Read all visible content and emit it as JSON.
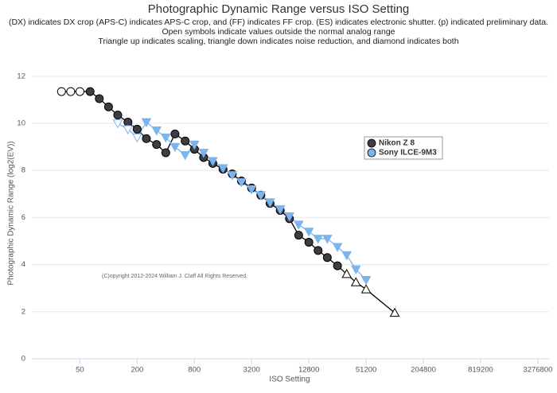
{
  "chart_data": {
    "type": "line",
    "title": "Photographic Dynamic Range versus ISO Setting",
    "subtitles": [
      "(DX) indicates DX crop (APS-C) indicates APS-C crop, and (FF) indicates FF crop. (ES) indicates electronic shutter. (p) indicated preliminary data.",
      "Open symbols indicate values outside the normal analog range",
      "Triangle up indicates scaling, triangle down indicates noise reduction, and diamond indicates both"
    ],
    "x_label": "ISO Setting",
    "y_label": "Photographic Dynamic Range (log2(EV))",
    "annotation": "(C)opyright 2012-2024 William J. Claff All Rights Reserved.",
    "x_scale": "log",
    "xlim": [
      15.6,
      4300000
    ],
    "xticks": [
      50,
      200,
      800,
      3200,
      12800,
      51200,
      204800,
      819200,
      3276800
    ],
    "ylim": [
      0,
      12.4
    ],
    "yticks": [
      0,
      2,
      4,
      6,
      8,
      10,
      12
    ],
    "grid": true,
    "series": [
      {
        "name": "Nikon Z 8",
        "color": "#3d3d44",
        "line_color": "#000000",
        "x": [
          32,
          40,
          50,
          64,
          80,
          100,
          125,
          160,
          200,
          250,
          320,
          400,
          500,
          640,
          800,
          1000,
          1250,
          1600,
          2000,
          2500,
          3200,
          4000,
          5000,
          6400,
          8000,
          10000,
          12800,
          16000,
          20000,
          25600,
          32000,
          40000,
          51200,
          102400
        ],
        "values": [
          11.35,
          11.35,
          11.35,
          11.35,
          11.05,
          10.7,
          10.35,
          10.05,
          9.75,
          9.35,
          9.1,
          8.75,
          9.55,
          9.25,
          8.9,
          8.55,
          8.3,
          8.05,
          7.85,
          7.55,
          7.25,
          6.95,
          6.6,
          6.3,
          5.95,
          5.25,
          4.95,
          4.6,
          4.3,
          3.95,
          3.6,
          3.25,
          2.95,
          1.95
        ],
        "markers": [
          "open-circle",
          "open-circle",
          "open-circle",
          "circle",
          "circle",
          "circle",
          "circle",
          "circle",
          "circle",
          "circle",
          "circle",
          "circle",
          "circle",
          "circle",
          "circle",
          "circle",
          "circle",
          "circle",
          "circle",
          "circle",
          "circle",
          "circle",
          "circle",
          "circle",
          "circle",
          "circle",
          "circle",
          "circle",
          "circle",
          "circle",
          "open-triangle-up",
          "open-triangle-up",
          "open-triangle-up",
          "open-triangle-up"
        ]
      },
      {
        "name": "Sony ILCE-9M3",
        "color": "#7cb5ec",
        "line_color": "#7cb5ec",
        "x": [
          125,
          160,
          200,
          250,
          320,
          400,
          500,
          640,
          800,
          1000,
          1250,
          1600,
          2000,
          2500,
          3200,
          4000,
          5000,
          6400,
          8000,
          10000,
          12800,
          16000,
          20000,
          25600,
          32000,
          40000,
          51200
        ],
        "values": [
          10.0,
          9.75,
          9.4,
          10.05,
          9.7,
          9.4,
          9.0,
          8.65,
          9.1,
          8.75,
          8.4,
          8.1,
          7.8,
          7.5,
          7.2,
          6.95,
          6.65,
          6.35,
          6.05,
          5.7,
          5.4,
          5.1,
          5.1,
          4.75,
          4.4,
          3.8,
          3.35
        ],
        "markers": [
          "open-triangle-down",
          "open-triangle-down",
          "open-triangle-down",
          "triangle-down",
          "triangle-down",
          "triangle-down",
          "triangle-down",
          "triangle-down",
          "triangle-down",
          "triangle-down",
          "triangle-down",
          "triangle-down",
          "triangle-down",
          "triangle-down",
          "triangle-down",
          "triangle-down",
          "triangle-down",
          "triangle-down",
          "triangle-down",
          "triangle-down",
          "triangle-down",
          "triangle-down",
          "triangle-down",
          "triangle-down",
          "triangle-down",
          "triangle-down",
          "triangle-down"
        ]
      }
    ]
  }
}
